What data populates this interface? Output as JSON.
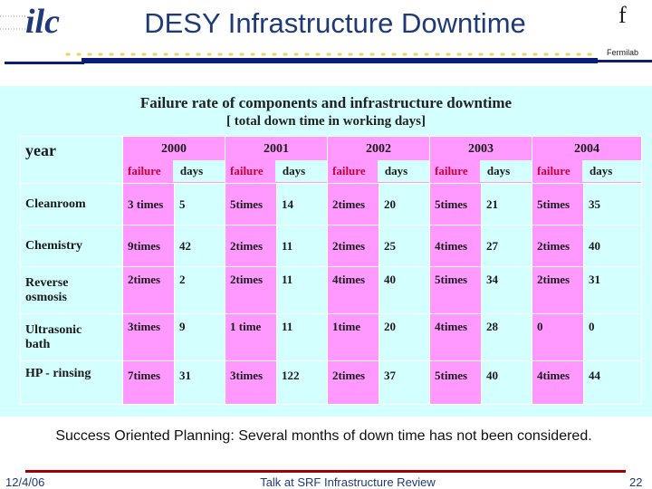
{
  "header": {
    "title": "DESY Infrastructure Downtime",
    "fermi_symbol": "f",
    "fermi_label": "Fermilab",
    "logo_text": "ilc"
  },
  "table_title": "Failure rate  of components  and infrastructure downtime",
  "table_subtitle": "[ total down time in working days]",
  "table": {
    "corner_label": "year",
    "years": [
      "2000",
      "2001",
      "2002",
      "2003",
      "2004"
    ],
    "sub_headers": {
      "failure": "failure",
      "days": "days"
    },
    "rows": [
      {
        "label": "Cleanroom",
        "cells": [
          "3 times",
          "5",
          "5times",
          "14",
          "2times",
          "20",
          "5times",
          "21",
          "5times",
          "35"
        ]
      },
      {
        "label": "Chemistry",
        "cells": [
          "9times",
          "42",
          "2times",
          "11",
          "2times",
          "25",
          "4times",
          "27",
          "2times",
          "40"
        ]
      },
      {
        "label": "Reverse osmosis",
        "cells": [
          "2times",
          "2",
          "2times",
          "11",
          "4times",
          "40",
          "5times",
          "34",
          "2times",
          "31"
        ]
      },
      {
        "label": "Ultrasonic bath",
        "cells": [
          "3times",
          "9",
          "1 time",
          "11",
          "1time",
          "20",
          "4times",
          "28",
          "0",
          "0"
        ]
      },
      {
        "label": "HP - rinsing",
        "cells": [
          "7times",
          "31",
          "3times",
          "122",
          "2times",
          "37",
          "5times",
          "40",
          "4times",
          "44"
        ]
      }
    ]
  },
  "footer_note": "Success Oriented Planning: Several months of down time has not been considered.",
  "footer": {
    "date": "12/4/06",
    "talk": "Talk at SRF Infrastructure Review",
    "page": "22"
  },
  "colors": {
    "pink": "#ff99ff",
    "cyan": "#d4ffff",
    "title_blue": "#1e3a78",
    "bar_navy": "#0a1e78",
    "bar_red": "#a30000",
    "failure_red": "#cc0033"
  }
}
